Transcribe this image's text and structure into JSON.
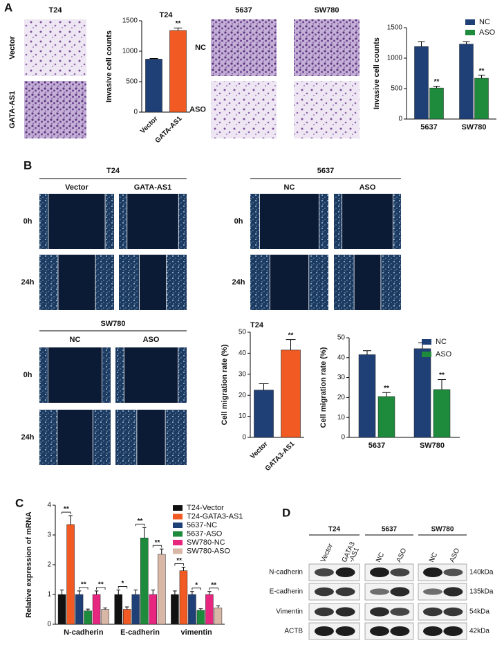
{
  "panel_labels": [
    "A",
    "B",
    "C",
    "D"
  ],
  "invasion": {
    "t24": {
      "title": "T24",
      "rows": [
        "Vector",
        "GATA-AS1"
      ]
    },
    "lines": {
      "columns": [
        "5637",
        "SW780"
      ],
      "rows": [
        "NC",
        "ASO"
      ]
    }
  },
  "migration": [
    {
      "title": "T24",
      "columns": [
        "Vector",
        "GATA-AS1"
      ],
      "rows": [
        "0h",
        "24h"
      ]
    },
    {
      "title": "5637",
      "columns": [
        "NC",
        "ASO"
      ],
      "rows": [
        "0h",
        "24h"
      ]
    },
    {
      "title": "SW780",
      "columns": [
        "NC",
        "ASO"
      ],
      "rows": [
        "0h",
        "24h"
      ]
    }
  ],
  "western": {
    "groups": [
      {
        "title": "T24",
        "lanes": [
          [
            "Vector"
          ],
          [
            "GATA3",
            "-AS1"
          ]
        ]
      },
      {
        "title": "5637",
        "lanes": [
          [
            "NC"
          ],
          [
            "ASO"
          ]
        ]
      },
      {
        "title": "SW780",
        "lanes": [
          [
            "NC"
          ],
          [
            "ASO"
          ]
        ]
      }
    ],
    "proteins": [
      {
        "name": "N-cadherin",
        "size": "140kDa"
      },
      {
        "name": "E-cadherin",
        "size": "135kDa"
      },
      {
        "name": "Vimentin",
        "size": "54kDa"
      },
      {
        "name": "ACTB",
        "size": "42kDa"
      }
    ]
  },
  "chart_data": [
    {
      "type": "bar",
      "title": "T24",
      "ylabel": "Invasive cell counts",
      "categories": [
        "Vector",
        "GATA-AS1"
      ],
      "values": [
        870,
        1340
      ],
      "errors": [
        10,
        40
      ],
      "colors": [
        "#1f3f77",
        "#f15a22"
      ],
      "significance": [
        null,
        "**"
      ],
      "ylim": [
        0,
        1500
      ],
      "yticks": [
        0,
        500,
        1000,
        1500
      ],
      "xtick_rotation": 45
    },
    {
      "type": "bar",
      "ylabel": "Invasive cell counts",
      "categories": [
        "5637",
        "SW780"
      ],
      "series": [
        {
          "name": "NC",
          "color": "#1f3f77",
          "values": [
            1190,
            1230
          ],
          "errors": [
            80,
            40
          ]
        },
        {
          "name": "ASO",
          "color": "#1e8a3c",
          "values": [
            510,
            670
          ],
          "errors": [
            30,
            50
          ],
          "significance": [
            "**",
            "**"
          ]
        }
      ],
      "ylim": [
        0,
        1500
      ],
      "yticks": [
        0,
        500,
        1000,
        1500
      ],
      "legend": "upper right"
    },
    {
      "type": "bar",
      "title": "T24",
      "ylabel": "Cell migration rate (%)",
      "categories": [
        "Vector",
        "GATA3-AS1"
      ],
      "values": [
        22.5,
        41.5
      ],
      "errors": [
        3,
        5
      ],
      "colors": [
        "#1f3f77",
        "#f15a22"
      ],
      "significance": [
        null,
        "**"
      ],
      "ylim": [
        0,
        50
      ],
      "yticks": [
        0,
        10,
        20,
        30,
        40,
        50
      ],
      "xtick_rotation": 45
    },
    {
      "type": "bar",
      "ylabel": "Cell migration rate (%)",
      "categories": [
        "5637",
        "SW780"
      ],
      "series": [
        {
          "name": "NC",
          "color": "#1f3f77",
          "values": [
            41.5,
            44.5
          ],
          "errors": [
            2,
            3
          ]
        },
        {
          "name": "ASO",
          "color": "#1e8a3c",
          "values": [
            20.5,
            24
          ],
          "errors": [
            2,
            5
          ],
          "significance": [
            "**",
            "**"
          ]
        }
      ],
      "ylim": [
        0,
        50
      ],
      "yticks": [
        0,
        10,
        20,
        30,
        40,
        50
      ],
      "legend": "upper right"
    },
    {
      "type": "bar",
      "ylabel": "Relative expression of mRNA",
      "categories": [
        "N-cadherin",
        "E-cadherin",
        "vimentin"
      ],
      "series": [
        {
          "name": "T24-Vector",
          "color": "#111111",
          "values": [
            1,
            1,
            1
          ],
          "errors": [
            0.15,
            0.15,
            0.12
          ]
        },
        {
          "name": "T24-GATA3-AS1",
          "color": "#f15a22",
          "values": [
            3.35,
            0.5,
            1.8
          ],
          "errors": [
            0.3,
            0.08,
            0.12
          ]
        },
        {
          "name": "5637-NC",
          "color": "#1f3f77",
          "values": [
            1,
            1,
            1
          ],
          "errors": [
            0.12,
            0.15,
            0.1
          ]
        },
        {
          "name": "5637-ASO",
          "color": "#1e8a3c",
          "values": [
            0.45,
            2.9,
            0.47
          ],
          "errors": [
            0.06,
            0.35,
            0.05
          ]
        },
        {
          "name": "SW780-NC",
          "color": "#e6267f",
          "values": [
            1,
            1,
            1
          ],
          "errors": [
            0.12,
            0.15,
            0.1
          ]
        },
        {
          "name": "SW780-ASO",
          "color": "#d8b7a6",
          "values": [
            0.5,
            2.35,
            0.55
          ],
          "errors": [
            0.05,
            0.18,
            0.07
          ]
        }
      ],
      "pair_significance": [
        [
          "**",
          "**",
          "**"
        ],
        [
          "*",
          "**",
          "**"
        ],
        [
          "**",
          "*",
          "**"
        ]
      ],
      "ylim": [
        0,
        4
      ],
      "yticks": [
        0,
        1,
        2,
        3,
        4
      ],
      "legend": "upper right"
    }
  ]
}
